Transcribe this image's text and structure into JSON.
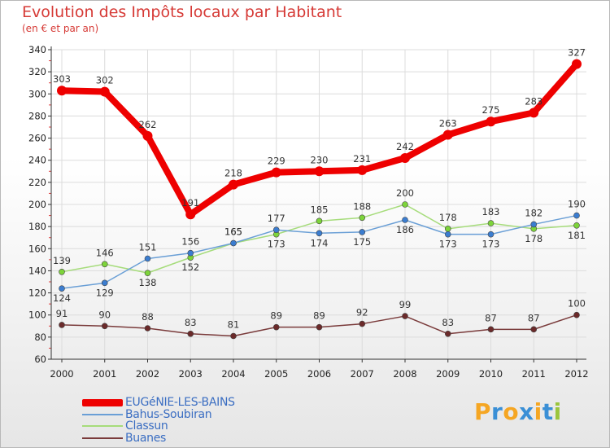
{
  "title": "Evolution des Impôts locaux par Habitant",
  "subtitle": "(en € et par an)",
  "brand": {
    "letters": [
      "P",
      "r",
      "o",
      "x",
      "i",
      "t",
      "i"
    ],
    "colors": [
      "#f5a623",
      "#3a8fd6",
      "#f5a623",
      "#3a8fd6",
      "#f5a623",
      "#3a8fd6",
      "#9bc53d"
    ]
  },
  "colors": {
    "title": "#d63a36",
    "grid": "#dcdcdc",
    "axis": "#333333"
  },
  "chart_data": {
    "type": "line",
    "title": "Evolution des Impôts locaux par Habitant",
    "subtitle": "(en € et par an)",
    "xlabel": "",
    "ylabel": "",
    "x": [
      "2000",
      "2001",
      "2002",
      "2003",
      "2004",
      "2005",
      "2006",
      "2007",
      "2008",
      "2009",
      "2010",
      "2011",
      "2012"
    ],
    "ylim": [
      60,
      340
    ],
    "yticks": [
      "60",
      "80",
      "100",
      "120",
      "140",
      "160",
      "180",
      "200",
      "220",
      "240",
      "260",
      "280",
      "300",
      "320",
      "340"
    ],
    "grid": true,
    "legend_position": "bottom-left",
    "series": [
      {
        "name": "EUGéNIE-LES-BAINS",
        "color": "#ee0000",
        "marker": "#ee0000",
        "values": [
          303,
          302,
          262,
          191,
          218,
          229,
          230,
          231,
          242,
          263,
          275,
          283,
          327
        ]
      },
      {
        "name": "Bahus-Soubiran",
        "color": "#6a9fd6",
        "marker": "#3b7dd0",
        "values": [
          124,
          129,
          151,
          156,
          165,
          177,
          174,
          175,
          186,
          173,
          173,
          182,
          190
        ]
      },
      {
        "name": "Classun",
        "color": "#a6dc7b",
        "marker": "#7dd43a",
        "values": [
          139,
          146,
          138,
          152,
          165,
          173,
          185,
          188,
          200,
          178,
          183,
          178,
          181
        ]
      },
      {
        "name": "Buanes",
        "color": "#7a3b3b",
        "marker": "#6b2a2a",
        "values": [
          91,
          90,
          88,
          83,
          81,
          89,
          89,
          92,
          99,
          83,
          87,
          87,
          100
        ]
      }
    ]
  }
}
